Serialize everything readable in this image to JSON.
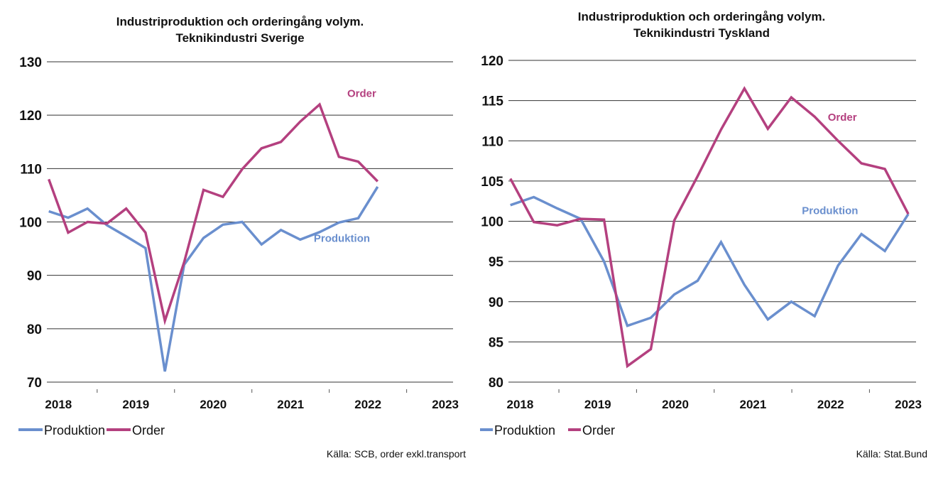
{
  "colors": {
    "produktion": "#6a8fce",
    "order": "#b4407f",
    "grid": "#333333"
  },
  "legend": {
    "items": [
      "Produktion",
      "Order"
    ]
  },
  "chart_data": [
    {
      "type": "line",
      "title_lines": [
        "Industriproduktion och orderingång volym.",
        "Teknikindustri Sverige"
      ],
      "x_tick_labels": [
        "2018",
        "2019",
        "2020",
        "2021",
        "2022",
        "2023"
      ],
      "x_tick_positions": [
        2018.0,
        2019.0,
        2020.0,
        2021.0,
        2022.0,
        2023.0
      ],
      "xlim": [
        2017.85,
        2023.1
      ],
      "ylim": [
        70,
        130
      ],
      "y_ticks": [
        70,
        80,
        90,
        100,
        110,
        120,
        130
      ],
      "grid": true,
      "legend_position": "bottom-left",
      "x": [
        2017.875,
        2018.125,
        2018.375,
        2018.625,
        2018.875,
        2019.125,
        2019.375,
        2019.625,
        2019.875,
        2020.125,
        2020.375,
        2020.625,
        2020.875,
        2021.125,
        2021.375,
        2021.625,
        2021.875,
        2022.125,
        2022.375,
        2022.625,
        2022.875
      ],
      "series": [
        {
          "name": "Produktion",
          "color_key": "produktion",
          "values": [
            102,
            100.8,
            102.5,
            99.4,
            97.3,
            95.1,
            72,
            92,
            97,
            99.5,
            100,
            95.8,
            98.5,
            96.7,
            98.1,
            99.9,
            100.7,
            106.6,
            null,
            null,
            null
          ]
        },
        {
          "name": "Order",
          "color_key": "order",
          "values": [
            108,
            98,
            100,
            99.7,
            102.5,
            98,
            81.5,
            92.5,
            106,
            104.7,
            109.9,
            113.8,
            115,
            118.8,
            122,
            112.2,
            111.3,
            107.6,
            null,
            null,
            null
          ]
        }
      ],
      "annotations": [
        {
          "text": "Order",
          "color_key": "order",
          "x": 2021.92,
          "y": 123.4,
          "anchor": "middle"
        },
        {
          "text": "Produktion",
          "color_key": "produktion",
          "x": 2021.3,
          "y": 96.3,
          "anchor": "start"
        }
      ],
      "source": "Källa: SCB, order exkl.transport"
    },
    {
      "type": "line",
      "title_lines": [
        "Industriproduktion och orderingång volym.",
        "Teknikindustri Tyskland"
      ],
      "x_tick_labels": [
        "2018",
        "2019",
        "2020",
        "2021",
        "2022",
        "2023"
      ],
      "x_tick_positions": [
        2018.0,
        2019.0,
        2020.0,
        2021.0,
        2022.0,
        2023.0
      ],
      "xlim": [
        2017.85,
        2023.1
      ],
      "ylim": [
        80,
        120
      ],
      "y_ticks": [
        80,
        85,
        90,
        95,
        100,
        105,
        110,
        115,
        120
      ],
      "grid": true,
      "legend_position": "bottom-left",
      "series": [
        {
          "name": "Produktion",
          "color_key": "produktion",
          "values": [
            102,
            103,
            101.6,
            100.3,
            95,
            87,
            88,
            90.9,
            92.6,
            97.4,
            92.1,
            87.8,
            90,
            88.2,
            94.5,
            98.4,
            96.3,
            100.9
          ]
        },
        {
          "name": "Order",
          "color_key": "order",
          "values": [
            105.3,
            99.9,
            99.5,
            100.3,
            100.2,
            82,
            84.1,
            100.1,
            105.6,
            111.4,
            116.5,
            111.5,
            115.4,
            113,
            110,
            107.2,
            106.5,
            100.9
          ]
        }
      ],
      "annotations": [
        {
          "text": "Order",
          "color_key": "order",
          "x": 2022.15,
          "y": 112.5,
          "anchor": "middle"
        },
        {
          "text": "Produktion",
          "color_key": "produktion",
          "x": 2021.63,
          "y": 100.9,
          "anchor": "start"
        }
      ],
      "source": "Källa: Stat.Bund"
    }
  ]
}
